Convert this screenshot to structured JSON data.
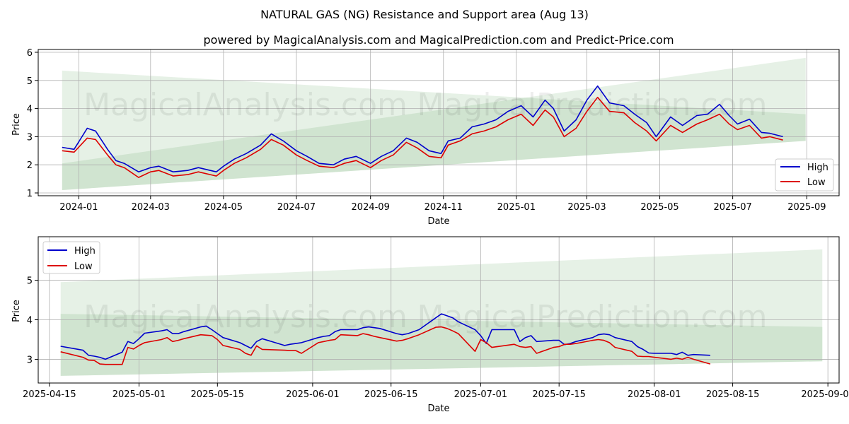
{
  "title": "NATURAL GAS (NG) Resistance and Support area (Aug 13)",
  "subtitle": "powered by MagicalAnalysis.com and MagicalPrediction.com and Predict-Price.com",
  "watermarks": [
    "MagicalAnalysis.com",
    "MagicalPrediction.com"
  ],
  "colors": {
    "high": "#0000cc",
    "low": "#dd0000",
    "band": "#2e8b2e"
  },
  "chart_data": [
    {
      "type": "line",
      "xlabel": "Date",
      "ylabel": "Price",
      "grid": true,
      "legend_position": "bottom-right",
      "xlim": [
        "2023-11-28",
        "2025-09-28"
      ],
      "ylim": [
        0.9,
        6.1
      ],
      "x_ticks": [
        "2024-01-01",
        "2024-03-01",
        "2024-05-01",
        "2024-07-01",
        "2024-09-01",
        "2024-11-01",
        "2025-01-01",
        "2025-03-01",
        "2025-05-01",
        "2025-07-01",
        "2025-09-01"
      ],
      "x_tick_labels": [
        "2024-01",
        "2024-03",
        "2024-05",
        "2024-07",
        "2024-09",
        "2024-11",
        "2025-01",
        "2025-03",
        "2025-05",
        "2025-07",
        "2025-09"
      ],
      "y_ticks": [
        1,
        2,
        3,
        4,
        5,
        6
      ],
      "y_tick_labels": [
        "1",
        "2",
        "3",
        "4",
        "5",
        "6"
      ],
      "bands": [
        {
          "x": [
            "2023-12-18",
            "2025-08-31"
          ],
          "upper": [
            5.35,
            3.8
          ],
          "lower": [
            1.1,
            2.85
          ]
        },
        {
          "x": [
            "2023-12-18",
            "2025-08-31"
          ],
          "upper": [
            2.05,
            5.8
          ],
          "lower": [
            1.1,
            2.85
          ]
        }
      ],
      "series": [
        {
          "name": "High",
          "x": [
            "2023-12-18",
            "2023-12-28",
            "2024-01-08",
            "2024-01-15",
            "2024-01-25",
            "2024-02-01",
            "2024-02-08",
            "2024-02-20",
            "2024-03-01",
            "2024-03-08",
            "2024-03-20",
            "2024-04-01",
            "2024-04-10",
            "2024-04-25",
            "2024-05-01",
            "2024-05-10",
            "2024-05-20",
            "2024-06-01",
            "2024-06-10",
            "2024-06-20",
            "2024-07-01",
            "2024-07-10",
            "2024-07-20",
            "2024-08-01",
            "2024-08-10",
            "2024-08-20",
            "2024-09-01",
            "2024-09-10",
            "2024-09-20",
            "2024-10-01",
            "2024-10-10",
            "2024-10-20",
            "2024-10-30",
            "2024-11-05",
            "2024-11-15",
            "2024-11-25",
            "2024-12-05",
            "2024-12-15",
            "2024-12-25",
            "2025-01-05",
            "2025-01-15",
            "2025-01-25",
            "2025-02-01",
            "2025-02-10",
            "2025-02-20",
            "2025-03-01",
            "2025-03-10",
            "2025-03-20",
            "2025-04-01",
            "2025-04-10",
            "2025-04-20",
            "2025-04-28",
            "2025-05-10",
            "2025-05-20",
            "2025-06-01",
            "2025-06-10",
            "2025-06-20",
            "2025-06-28",
            "2025-07-05",
            "2025-07-15",
            "2025-07-25",
            "2025-08-01",
            "2025-08-12"
          ],
          "values": [
            2.62,
            2.55,
            3.3,
            3.2,
            2.55,
            2.15,
            2.05,
            1.75,
            1.9,
            1.95,
            1.75,
            1.8,
            1.9,
            1.75,
            1.95,
            2.2,
            2.4,
            2.7,
            3.1,
            2.85,
            2.5,
            2.3,
            2.05,
            2.0,
            2.2,
            2.3,
            2.05,
            2.3,
            2.5,
            2.95,
            2.8,
            2.5,
            2.4,
            2.85,
            2.95,
            3.35,
            3.45,
            3.6,
            3.9,
            4.1,
            3.7,
            4.3,
            4.0,
            3.2,
            3.6,
            4.3,
            4.8,
            4.2,
            4.1,
            3.8,
            3.5,
            3.0,
            3.7,
            3.4,
            3.75,
            3.8,
            4.15,
            3.75,
            3.45,
            3.62,
            3.15,
            3.12,
            3.0
          ]
        },
        {
          "name": "Low",
          "x": [
            "2023-12-18",
            "2023-12-28",
            "2024-01-08",
            "2024-01-15",
            "2024-01-25",
            "2024-02-01",
            "2024-02-08",
            "2024-02-20",
            "2024-03-01",
            "2024-03-08",
            "2024-03-20",
            "2024-04-01",
            "2024-04-10",
            "2024-04-25",
            "2024-05-01",
            "2024-05-10",
            "2024-05-20",
            "2024-06-01",
            "2024-06-10",
            "2024-06-20",
            "2024-07-01",
            "2024-07-10",
            "2024-07-20",
            "2024-08-01",
            "2024-08-10",
            "2024-08-20",
            "2024-09-01",
            "2024-09-10",
            "2024-09-20",
            "2024-10-01",
            "2024-10-10",
            "2024-10-20",
            "2024-10-30",
            "2024-11-05",
            "2024-11-15",
            "2024-11-25",
            "2024-12-05",
            "2024-12-15",
            "2024-12-25",
            "2025-01-05",
            "2025-01-15",
            "2025-01-25",
            "2025-02-01",
            "2025-02-10",
            "2025-02-20",
            "2025-03-01",
            "2025-03-10",
            "2025-03-20",
            "2025-04-01",
            "2025-04-10",
            "2025-04-20",
            "2025-04-28",
            "2025-05-10",
            "2025-05-20",
            "2025-06-01",
            "2025-06-10",
            "2025-06-20",
            "2025-06-28",
            "2025-07-05",
            "2025-07-15",
            "2025-07-25",
            "2025-08-01",
            "2025-08-12"
          ],
          "values": [
            2.5,
            2.45,
            2.95,
            2.9,
            2.35,
            2.0,
            1.9,
            1.55,
            1.75,
            1.8,
            1.6,
            1.65,
            1.75,
            1.6,
            1.8,
            2.05,
            2.25,
            2.55,
            2.9,
            2.7,
            2.35,
            2.15,
            1.95,
            1.9,
            2.05,
            2.15,
            1.9,
            2.15,
            2.35,
            2.8,
            2.6,
            2.3,
            2.25,
            2.7,
            2.85,
            3.1,
            3.2,
            3.35,
            3.6,
            3.8,
            3.4,
            3.95,
            3.7,
            3.0,
            3.3,
            3.9,
            4.4,
            3.9,
            3.85,
            3.5,
            3.2,
            2.85,
            3.4,
            3.15,
            3.45,
            3.6,
            3.8,
            3.45,
            3.25,
            3.4,
            2.95,
            3.0,
            2.88
          ]
        }
      ]
    },
    {
      "type": "line",
      "xlabel": "Date",
      "ylabel": "Price",
      "grid": true,
      "legend_position": "top-left",
      "xlim": [
        "2025-04-13",
        "2025-09-03"
      ],
      "ylim": [
        2.4,
        6.1
      ],
      "x_ticks": [
        "2025-04-15",
        "2025-05-01",
        "2025-05-15",
        "2025-06-01",
        "2025-06-15",
        "2025-07-01",
        "2025-07-15",
        "2025-08-01",
        "2025-08-15",
        "2025-09-01"
      ],
      "x_tick_labels": [
        "2025-04-15",
        "2025-05-01",
        "2025-05-15",
        "2025-06-01",
        "2025-06-15",
        "2025-07-01",
        "2025-07-15",
        "2025-08-01",
        "2025-08-15",
        "2025-09-01"
      ],
      "y_ticks": [
        3,
        4,
        5
      ],
      "y_tick_labels": [
        "3",
        "4",
        "5"
      ],
      "bands": [
        {
          "x": [
            "2025-04-17",
            "2025-08-31"
          ],
          "upper": [
            4.95,
            5.78
          ],
          "lower": [
            2.58,
            2.95
          ]
        },
        {
          "x": [
            "2025-04-17",
            "2025-08-31"
          ],
          "upper": [
            4.15,
            3.82
          ],
          "lower": [
            2.58,
            2.95
          ]
        }
      ],
      "series": [
        {
          "name": "High",
          "x": [
            "2025-04-17",
            "2025-04-21",
            "2025-04-22",
            "2025-04-23",
            "2025-04-24",
            "2025-04-25",
            "2025-04-28",
            "2025-04-29",
            "2025-04-30",
            "2025-05-01",
            "2025-05-02",
            "2025-05-05",
            "2025-05-06",
            "2025-05-07",
            "2025-05-08",
            "2025-05-09",
            "2025-05-12",
            "2025-05-13",
            "2025-05-14",
            "2025-05-15",
            "2025-05-16",
            "2025-05-19",
            "2025-05-20",
            "2025-05-21",
            "2025-05-22",
            "2025-05-23",
            "2025-05-27",
            "2025-05-28",
            "2025-05-29",
            "2025-05-30",
            "2025-06-02",
            "2025-06-03",
            "2025-06-04",
            "2025-06-05",
            "2025-06-06",
            "2025-06-09",
            "2025-06-10",
            "2025-06-11",
            "2025-06-12",
            "2025-06-13",
            "2025-06-16",
            "2025-06-17",
            "2025-06-18",
            "2025-06-20",
            "2025-06-23",
            "2025-06-24",
            "2025-06-25",
            "2025-06-26",
            "2025-06-27",
            "2025-06-30",
            "2025-07-01",
            "2025-07-02",
            "2025-07-03",
            "2025-07-07",
            "2025-07-08",
            "2025-07-09",
            "2025-07-10",
            "2025-07-11",
            "2025-07-14",
            "2025-07-15",
            "2025-07-16",
            "2025-07-17",
            "2025-07-18",
            "2025-07-21",
            "2025-07-22",
            "2025-07-23",
            "2025-07-24",
            "2025-07-25",
            "2025-07-28",
            "2025-07-29",
            "2025-07-30",
            "2025-07-31",
            "2025-08-01",
            "2025-08-04",
            "2025-08-05",
            "2025-08-06",
            "2025-08-07",
            "2025-08-08",
            "2025-08-11"
          ],
          "values": [
            3.33,
            3.23,
            3.1,
            3.08,
            3.05,
            3.0,
            3.18,
            3.45,
            3.4,
            3.52,
            3.66,
            3.72,
            3.75,
            3.65,
            3.65,
            3.7,
            3.82,
            3.84,
            3.75,
            3.65,
            3.55,
            3.42,
            3.35,
            3.28,
            3.45,
            3.52,
            3.35,
            3.38,
            3.4,
            3.42,
            3.55,
            3.58,
            3.6,
            3.7,
            3.75,
            3.75,
            3.8,
            3.82,
            3.8,
            3.78,
            3.65,
            3.62,
            3.65,
            3.75,
            4.05,
            4.15,
            4.1,
            4.05,
            3.95,
            3.75,
            3.6,
            3.4,
            3.75,
            3.75,
            3.45,
            3.55,
            3.6,
            3.45,
            3.48,
            3.48,
            3.37,
            3.4,
            3.45,
            3.55,
            3.62,
            3.64,
            3.62,
            3.55,
            3.45,
            3.32,
            3.25,
            3.16,
            3.15,
            3.15,
            3.12,
            3.18,
            3.1,
            3.12,
            3.1
          ]
        },
        {
          "name": "Low",
          "x": [
            "2025-04-17",
            "2025-04-21",
            "2025-04-22",
            "2025-04-23",
            "2025-04-24",
            "2025-04-25",
            "2025-04-28",
            "2025-04-29",
            "2025-04-30",
            "2025-05-01",
            "2025-05-02",
            "2025-05-05",
            "2025-05-06",
            "2025-05-07",
            "2025-05-08",
            "2025-05-09",
            "2025-05-12",
            "2025-05-13",
            "2025-05-14",
            "2025-05-15",
            "2025-05-16",
            "2025-05-19",
            "2025-05-20",
            "2025-05-21",
            "2025-05-22",
            "2025-05-23",
            "2025-05-27",
            "2025-05-28",
            "2025-05-29",
            "2025-05-30",
            "2025-06-02",
            "2025-06-03",
            "2025-06-04",
            "2025-06-05",
            "2025-06-06",
            "2025-06-09",
            "2025-06-10",
            "2025-06-11",
            "2025-06-12",
            "2025-06-13",
            "2025-06-16",
            "2025-06-17",
            "2025-06-18",
            "2025-06-20",
            "2025-06-23",
            "2025-06-24",
            "2025-06-25",
            "2025-06-26",
            "2025-06-27",
            "2025-06-30",
            "2025-07-01",
            "2025-07-02",
            "2025-07-03",
            "2025-07-07",
            "2025-07-08",
            "2025-07-09",
            "2025-07-10",
            "2025-07-11",
            "2025-07-14",
            "2025-07-15",
            "2025-07-16",
            "2025-07-17",
            "2025-07-18",
            "2025-07-21",
            "2025-07-22",
            "2025-07-23",
            "2025-07-24",
            "2025-07-25",
            "2025-07-28",
            "2025-07-29",
            "2025-07-30",
            "2025-07-31",
            "2025-08-01",
            "2025-08-04",
            "2025-08-05",
            "2025-08-06",
            "2025-08-07",
            "2025-08-08",
            "2025-08-11"
          ],
          "values": [
            3.19,
            3.05,
            2.98,
            2.97,
            2.88,
            2.87,
            2.87,
            3.3,
            3.26,
            3.35,
            3.42,
            3.5,
            3.55,
            3.45,
            3.48,
            3.52,
            3.62,
            3.61,
            3.6,
            3.5,
            3.35,
            3.25,
            3.15,
            3.1,
            3.34,
            3.25,
            3.23,
            3.22,
            3.22,
            3.15,
            3.42,
            3.45,
            3.48,
            3.5,
            3.62,
            3.6,
            3.65,
            3.62,
            3.58,
            3.55,
            3.46,
            3.48,
            3.52,
            3.62,
            3.81,
            3.82,
            3.78,
            3.72,
            3.65,
            3.2,
            3.5,
            3.42,
            3.3,
            3.38,
            3.32,
            3.3,
            3.32,
            3.15,
            3.3,
            3.32,
            3.38,
            3.38,
            3.4,
            3.48,
            3.5,
            3.48,
            3.42,
            3.3,
            3.2,
            3.08,
            3.07,
            3.07,
            3.05,
            3.0,
            3.03,
            3.0,
            3.05,
            3.0,
            2.88
          ]
        }
      ]
    }
  ]
}
